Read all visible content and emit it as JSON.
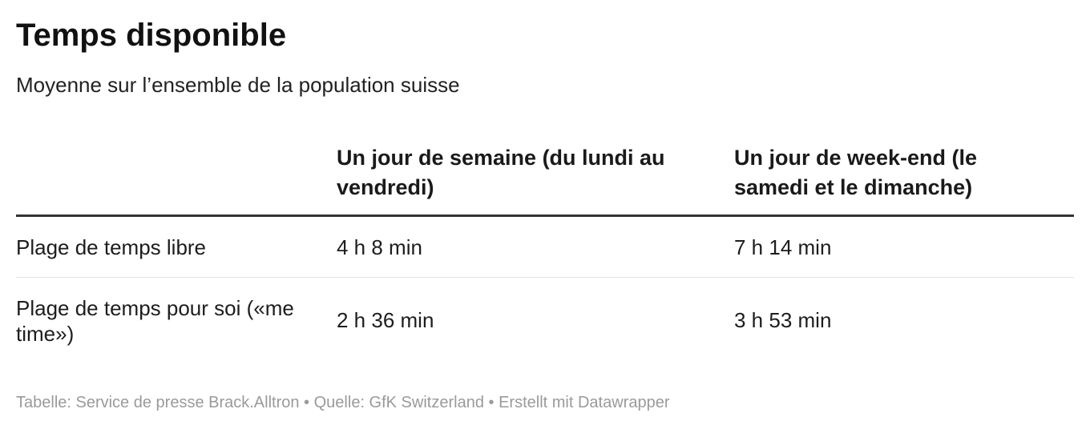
{
  "chart_data": {
    "type": "table",
    "title": "Temps disponible",
    "subtitle": "Moyenne sur l’ensemble de la population suisse",
    "columns": [
      "",
      "Un jour de semaine (du lundi au vendredi)",
      "Un jour de week-end (le samedi et le dimanche)"
    ],
    "rows": [
      {
        "label": "Plage de temps libre",
        "values": [
          "4 h 8 min",
          "7 h 14 min"
        ]
      },
      {
        "label": "Plage de temps pour soi («me time»)",
        "values": [
          "2 h 36 min",
          "3 h 53 min"
        ]
      }
    ],
    "footer": {
      "parts": [
        "Tabelle: Service de presse Brack.Alltron",
        "Quelle: GfK Switzerland",
        "Erstellt mit Datawrapper"
      ],
      "separator": " • "
    }
  }
}
